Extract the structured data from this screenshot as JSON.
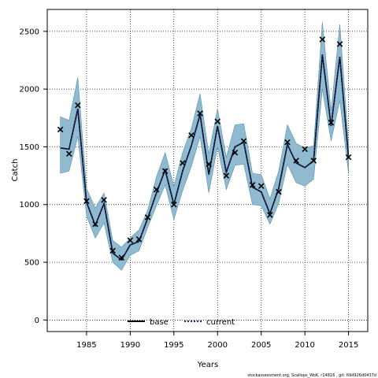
{
  "chart_data": {
    "type": "line",
    "xlabel": "Years",
    "ylabel": "Catch",
    "xlim": [
      1980.5,
      2017.2
    ],
    "ylim": [
      -100,
      2690
    ],
    "xticks": [
      1985,
      1990,
      1995,
      2000,
      2005,
      2010,
      2015
    ],
    "yticks": [
      0,
      500,
      1000,
      1500,
      2000,
      2500
    ],
    "grid": true,
    "legend_position": "bottom-center",
    "colors": {
      "band": "#8fbad0",
      "band_edge": "#5b8fa8",
      "line": "#000000"
    },
    "years": [
      1982,
      1983,
      1984,
      1985,
      1986,
      1987,
      1988,
      1989,
      1990,
      1991,
      1992,
      1993,
      1994,
      1995,
      1996,
      1997,
      1998,
      1999,
      2000,
      2001,
      2002,
      2003,
      2004,
      2005,
      2006,
      2007,
      2008,
      2009,
      2010,
      2011,
      2012,
      2013,
      2014,
      2015
    ],
    "band_upper": [
      1760,
      1730,
      2100,
      1140,
      970,
      1100,
      690,
      630,
      710,
      780,
      950,
      1240,
      1450,
      1160,
      1450,
      1660,
      1960,
      1440,
      1830,
      1410,
      1690,
      1700,
      1270,
      1260,
      1050,
      1290,
      1690,
      1530,
      1490,
      1510,
      2580,
      1810,
      2560,
      1520
    ],
    "band_lower": [
      1270,
      1290,
      1590,
      900,
      710,
      840,
      500,
      430,
      560,
      600,
      800,
      990,
      1170,
      870,
      1120,
      1330,
      1590,
      1100,
      1500,
      1130,
      1340,
      1350,
      1000,
      990,
      830,
      1010,
      1350,
      1190,
      1160,
      1220,
      2000,
      1550,
      1900,
      1270
    ],
    "observed": [
      1650,
      1440,
      1860,
      1030,
      830,
      1040,
      600,
      540,
      690,
      700,
      890,
      1130,
      1290,
      1000,
      1360,
      1600,
      1790,
      1350,
      1720,
      1250,
      1450,
      1550,
      1170,
      1160,
      910,
      1110,
      1540,
      1380,
      1480,
      1380,
      2430,
      1710,
      2390,
      1410
    ],
    "series": [
      {
        "name": "base",
        "values": [
          1490,
          1480,
          1830,
          1020,
          820,
          1010,
          580,
          520,
          650,
          680,
          880,
          1100,
          1300,
          1000,
          1290,
          1510,
          1780,
          1260,
          1680,
          1280,
          1500,
          1540,
          1150,
          1110,
          920,
          1140,
          1520,
          1360,
          1320,
          1380,
          2300,
          1680,
          2280,
          1400
        ]
      },
      {
        "name": "current",
        "values": [
          1490,
          1480,
          1830,
          1020,
          820,
          1010,
          580,
          520,
          650,
          680,
          880,
          1100,
          1300,
          1000,
          1290,
          1510,
          1780,
          1260,
          1680,
          1280,
          1500,
          1540,
          1150,
          1110,
          920,
          1140,
          1520,
          1360,
          1320,
          1380,
          2300,
          1680,
          2280,
          1400
        ]
      }
    ],
    "footer": "stockassessment.org, Scallops_WoK, r14816 , git: 69d926d0437d"
  }
}
